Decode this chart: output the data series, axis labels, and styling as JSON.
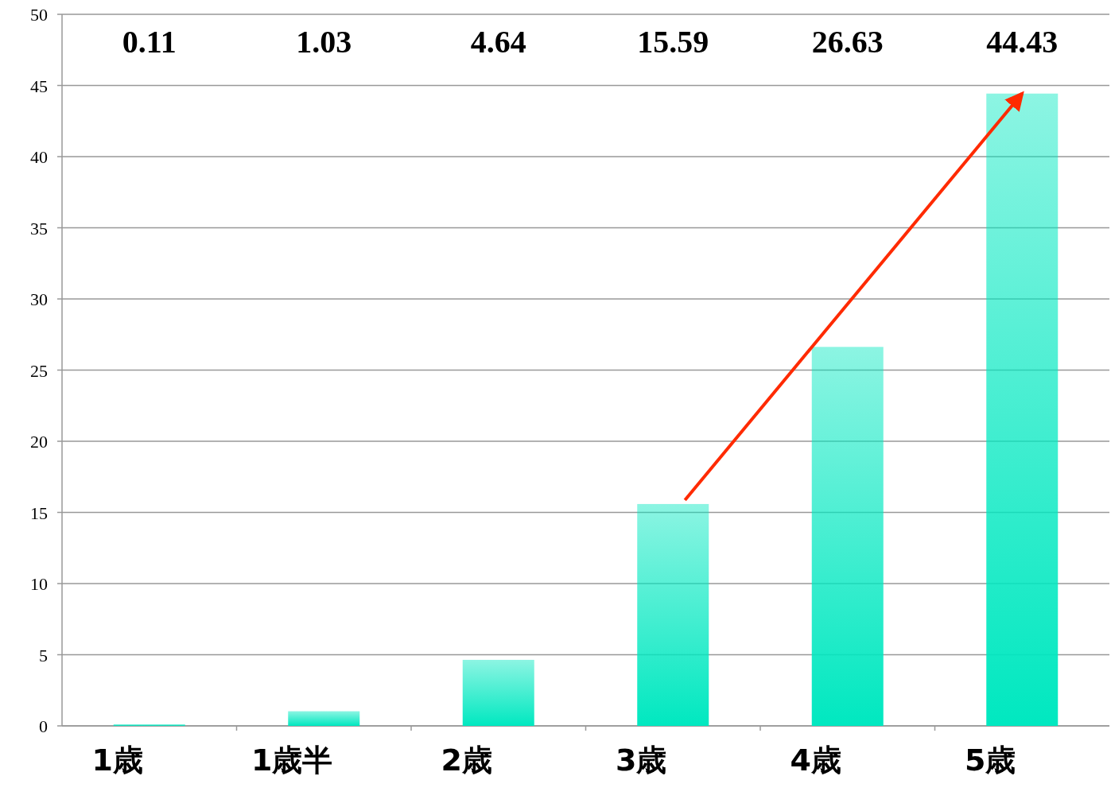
{
  "chart_data": {
    "type": "bar",
    "categories": [
      "1歳",
      "1歳半",
      "2歳",
      "3歳",
      "4歳",
      "5歳"
    ],
    "values": [
      0.11,
      1.03,
      4.64,
      15.59,
      26.63,
      44.43
    ],
    "color": "#00e8c0",
    "ylim": [
      0,
      50
    ],
    "yticks": [
      0,
      5,
      10,
      15,
      20,
      25,
      30,
      35,
      40,
      45,
      50
    ],
    "grid": "y",
    "annotations": [
      "0.11",
      "1.03",
      "4.64",
      "15.59",
      "26.63",
      "44.43"
    ]
  }
}
